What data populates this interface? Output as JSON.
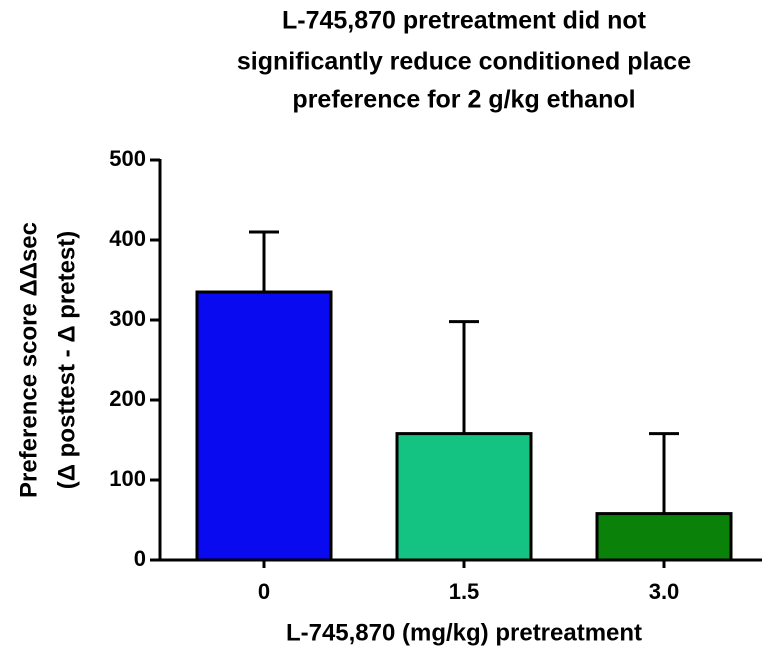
{
  "chart_data": {
    "type": "bar",
    "title": [
      "L-745,870 pretreatment did not",
      "significantly reduce conditioned place",
      "preference for 2 g/kg ethanol"
    ],
    "xlabel": "L-745,870 (mg/kg) pretreatment",
    "ylabel": [
      "Preference score ΔΔsec",
      "(Δ posttest - Δ pretest)"
    ],
    "categories": [
      "0",
      "1.5",
      "3.0"
    ],
    "values": [
      335,
      158,
      58
    ],
    "errors": [
      75,
      140,
      100
    ],
    "colors": [
      "#0a0af0",
      "#14c282",
      "#0a820a"
    ],
    "ylim": [
      0,
      500
    ],
    "yticks": [
      0,
      100,
      200,
      300,
      400,
      500
    ]
  }
}
